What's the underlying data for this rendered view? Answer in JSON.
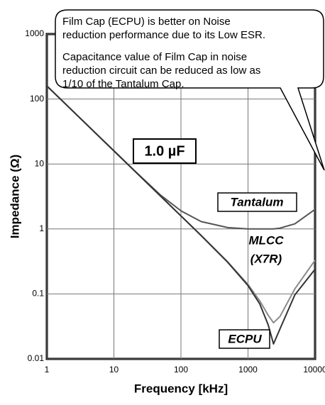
{
  "chart_data": {
    "type": "line",
    "xlabel": "Frequency [kHz]",
    "ylabel": "Impedance (Ω)",
    "x": [
      1,
      2,
      5,
      10,
      20,
      50,
      100,
      200,
      500,
      1000,
      1500,
      2000,
      2400,
      3000,
      5000,
      10000
    ],
    "series": [
      {
        "name": "Tantalum",
        "color": "#555555",
        "values": [
          159.2,
          79.6,
          31.9,
          16.0,
          8.0,
          3.3,
          1.9,
          1.3,
          1.05,
          1.0,
          1.0,
          1.0,
          1.0,
          1.03,
          1.2,
          2.0
        ]
      },
      {
        "name": "MLCC (X7R)",
        "color": "#8a8a8a",
        "values": [
          159.2,
          79.6,
          31.8,
          15.9,
          7.96,
          3.18,
          1.59,
          0.8,
          0.31,
          0.14,
          0.078,
          0.047,
          0.036,
          0.045,
          0.12,
          0.33
        ]
      },
      {
        "name": "ECPU",
        "color": "#333333",
        "values": [
          159.2,
          79.6,
          31.8,
          15.9,
          7.96,
          3.18,
          1.59,
          0.79,
          0.306,
          0.134,
          0.07,
          0.0334,
          0.017,
          0.029,
          0.097,
          0.24
        ]
      }
    ],
    "xlim": [
      1,
      10000
    ],
    "xticks": [
      1,
      10,
      100,
      1000,
      10000
    ],
    "ylim": [
      0.01,
      1000
    ],
    "yticks": [
      0.01,
      0.1,
      1,
      10,
      100,
      1000
    ],
    "xscale": "log",
    "yscale": "log",
    "grid": true,
    "annotations": {
      "capacitance": "1.0 µF",
      "tantalum": "Tantalum",
      "mlcc": [
        "MLCC",
        "(X7R)"
      ],
      "ecpu": "ECPU",
      "callout": [
        "Film Cap (ECPU) is better on Noise",
        "reduction performance due to its Low ESR.",
        "Capacitance value of Film Cap in noise",
        "reduction circuit can be reduced as low as",
        "1/10 of the Tantalum Cap."
      ]
    }
  }
}
